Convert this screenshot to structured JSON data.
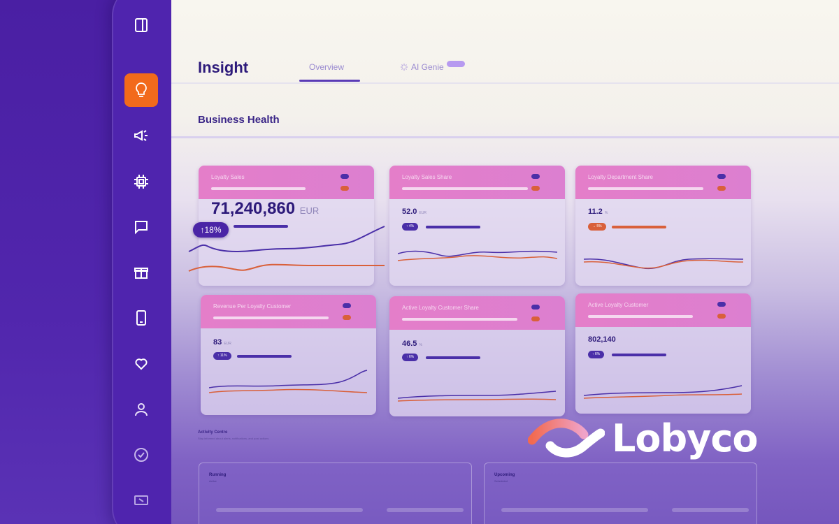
{
  "header": {
    "title": "Insight",
    "tabs": [
      {
        "label": "Overview",
        "active": true
      },
      {
        "label": "AI Genie",
        "active": false
      }
    ]
  },
  "section": {
    "title": "Business Health"
  },
  "cards": [
    {
      "title": "Loyalty Sales",
      "value": "71,240,860",
      "unit": "EUR",
      "change": "18%",
      "trend": "up"
    },
    {
      "title": "Loyalty Sales Share",
      "value": "52.0",
      "unit": "EUR",
      "change": "4%",
      "trend": "up"
    },
    {
      "title": "Loyalty Department Share",
      "value": "11.2",
      "unit": "%",
      "change": "5%",
      "trend": "right"
    },
    {
      "title": "Revenue Per Loyalty Customer",
      "value": "83",
      "unit": "EUR",
      "change": "11%",
      "trend": "up"
    },
    {
      "title": "Active Loyalty Customer Share",
      "value": "46.5",
      "unit": "%",
      "change": "6%",
      "trend": "up"
    },
    {
      "title": "Active Loyalty Customer",
      "value": "802,140",
      "unit": "",
      "change": "6%",
      "trend": "up"
    }
  ],
  "activity": {
    "title": "Activity Centre",
    "subtitle": "Stay informed about alerts, notifications, and post actions",
    "panels": [
      {
        "title": "Running",
        "subtitle": "Active"
      },
      {
        "title": "Upcoming",
        "subtitle": "Scheduled"
      }
    ]
  },
  "brand": {
    "name": "Lobyco"
  },
  "sidebar": {
    "items": [
      {
        "icon": "panel-toggle-icon"
      },
      {
        "icon": "lightbulb-icon",
        "active": true
      },
      {
        "icon": "megaphone-icon"
      },
      {
        "icon": "chip-icon"
      },
      {
        "icon": "chat-icon"
      },
      {
        "icon": "gift-icon"
      },
      {
        "icon": "mobile-icon"
      },
      {
        "icon": "heart-icon"
      },
      {
        "icon": "user-icon"
      },
      {
        "icon": "check-circle-icon"
      },
      {
        "icon": "ticket-icon"
      }
    ]
  },
  "colors": {
    "sidebar": "#4f24ae",
    "accent": "#f26a1b",
    "card_header": "#e47ec9",
    "primary_line": "#4a2fa8",
    "secondary_line": "#d9603a"
  }
}
